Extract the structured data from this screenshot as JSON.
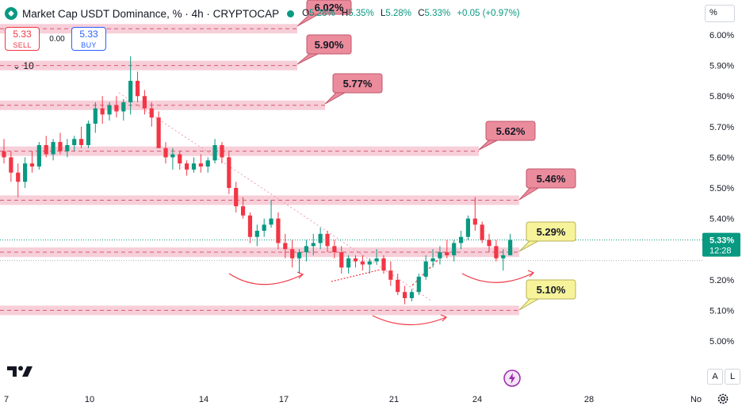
{
  "legend": {
    "title": "Market Cap USDT Dominance, % · 4h · CRYPTOCAP",
    "ohlc": {
      "o_label": "O",
      "o": "5.28%",
      "h_label": "H",
      "h": "5.35%",
      "l_label": "L",
      "l": "5.28%",
      "c_label": "C",
      "c": "5.33%",
      "change": "+0.05 (+0.97%)"
    }
  },
  "trade": {
    "sell_price": "5.33",
    "sell_label": "SELL",
    "spread": "0.00",
    "buy_price": "5.33",
    "buy_label": "BUY"
  },
  "volume_toggle": {
    "chevron": "⌄",
    "label": "10"
  },
  "unit_button": "%",
  "bottom_controls": {
    "auto": "A",
    "log": "L"
  },
  "colors": {
    "up": "#089981",
    "down": "#f23645",
    "zone_fill": "#f7cfd9",
    "label_red": "#eb8c9c",
    "label_yellow": "#f7f39a",
    "trendline": "#f49aaa"
  },
  "chart_data": {
    "type": "candlestick",
    "y_unit": "%",
    "ylim": [
      4.965,
      6.06
    ],
    "y_ticks": [
      "6.00%",
      "5.90%",
      "5.80%",
      "5.70%",
      "5.60%",
      "5.50%",
      "5.40%",
      "5.30%",
      "5.20%",
      "5.10%",
      "5.00%"
    ],
    "x_ticks": [
      "7",
      "10",
      "14",
      "17",
      "21",
      "24",
      "28",
      "No"
    ],
    "last_price": "5.33%",
    "countdown": "12:28",
    "levels": [
      {
        "value": 6.02,
        "label": "6.02%",
        "color": "red"
      },
      {
        "value": 5.9,
        "label": "5.90%",
        "color": "red"
      },
      {
        "value": 5.77,
        "label": "5.77%",
        "color": "red"
      },
      {
        "value": 5.62,
        "label": "5.62%",
        "color": "red"
      },
      {
        "value": 5.46,
        "label": "5.46%",
        "color": "red"
      },
      {
        "value": 5.29,
        "label": "5.29%",
        "color": "yellow"
      },
      {
        "value": 5.1,
        "label": "5.10%",
        "color": "yellow"
      }
    ]
  }
}
